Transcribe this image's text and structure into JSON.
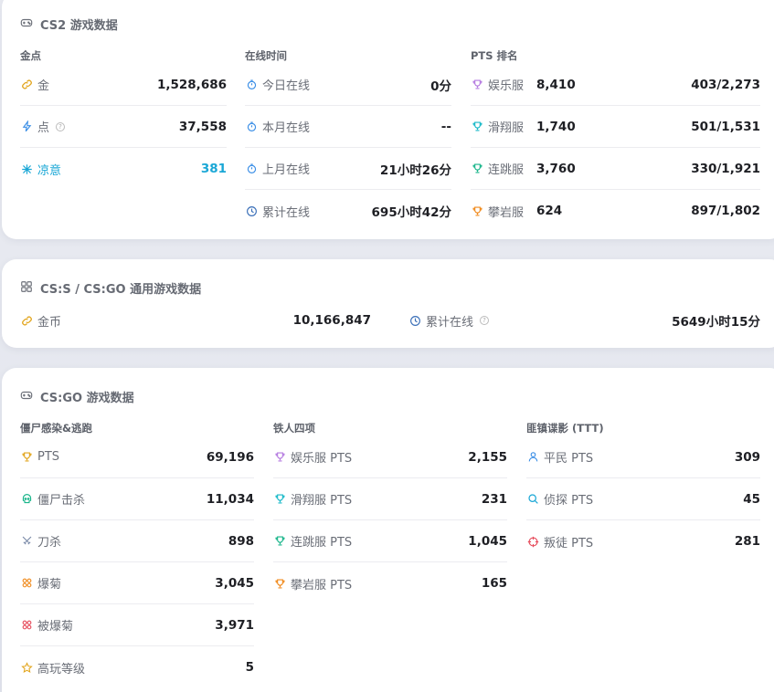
{
  "cs2": {
    "title": "CS2 游戏数据",
    "gold": {
      "header": "金点",
      "rows": [
        {
          "label": "金",
          "value": "1,528,686"
        },
        {
          "label": "点",
          "value": "37,558"
        },
        {
          "label": "凉意",
          "value": "381"
        }
      ]
    },
    "online": {
      "header": "在线时间",
      "rows": [
        {
          "label": "今日在线",
          "value": "0分"
        },
        {
          "label": "本月在线",
          "value": "--"
        },
        {
          "label": "上月在线",
          "value": "21小时26分"
        },
        {
          "label": "累计在线",
          "value": "695小时42分"
        }
      ]
    },
    "pts": {
      "header": "PTS 排名",
      "rows": [
        {
          "label": "娱乐服",
          "pts": "8,410",
          "rank": "403/2,273"
        },
        {
          "label": "滑翔服",
          "pts": "1,740",
          "rank": "501/1,531"
        },
        {
          "label": "连跳服",
          "pts": "3,760",
          "rank": "330/1,921"
        },
        {
          "label": "攀岩服",
          "pts": "624",
          "rank": "897/1,802"
        }
      ]
    }
  },
  "common": {
    "title": "CS:S / CS:GO 通用游戏数据",
    "coins_label": "金币",
    "coins_value": "10,166,847",
    "total_label": "累计在线",
    "total_value": "5649小时15分"
  },
  "csgo": {
    "title": "CS:GO 游戏数据",
    "zombie": {
      "header": "僵尸感染&逃跑",
      "rows": [
        {
          "label": "PTS",
          "value": "69,196"
        },
        {
          "label": "僵尸击杀",
          "value": "11,034"
        },
        {
          "label": "刀杀",
          "value": "898"
        },
        {
          "label": "爆菊",
          "value": "3,045"
        },
        {
          "label": "被爆菊",
          "value": "3,971"
        },
        {
          "label": "高玩等级",
          "value": "5"
        }
      ]
    },
    "iron": {
      "header": "铁人四项",
      "rows": [
        {
          "label": "娱乐服 PTS",
          "value": "2,155"
        },
        {
          "label": "滑翔服 PTS",
          "value": "231"
        },
        {
          "label": "连跳服 PTS",
          "value": "1,045"
        },
        {
          "label": "攀岩服 PTS",
          "value": "165"
        }
      ]
    },
    "ttt": {
      "header": "匪镇谍影 (TTT)",
      "rows": [
        {
          "label": "平民 PTS",
          "value": "309"
        },
        {
          "label": "侦探 PTS",
          "value": "45"
        },
        {
          "label": "叛徒 PTS",
          "value": "281"
        }
      ]
    }
  },
  "colors": {
    "gold": "#e2a51d",
    "blue": "#3a8ee6",
    "cyan": "#1aa7d6",
    "purple": "#b57be0",
    "teal": "#18b9c8",
    "green": "#19b58a",
    "orange": "#f08a1c",
    "red": "#e64a5a"
  }
}
